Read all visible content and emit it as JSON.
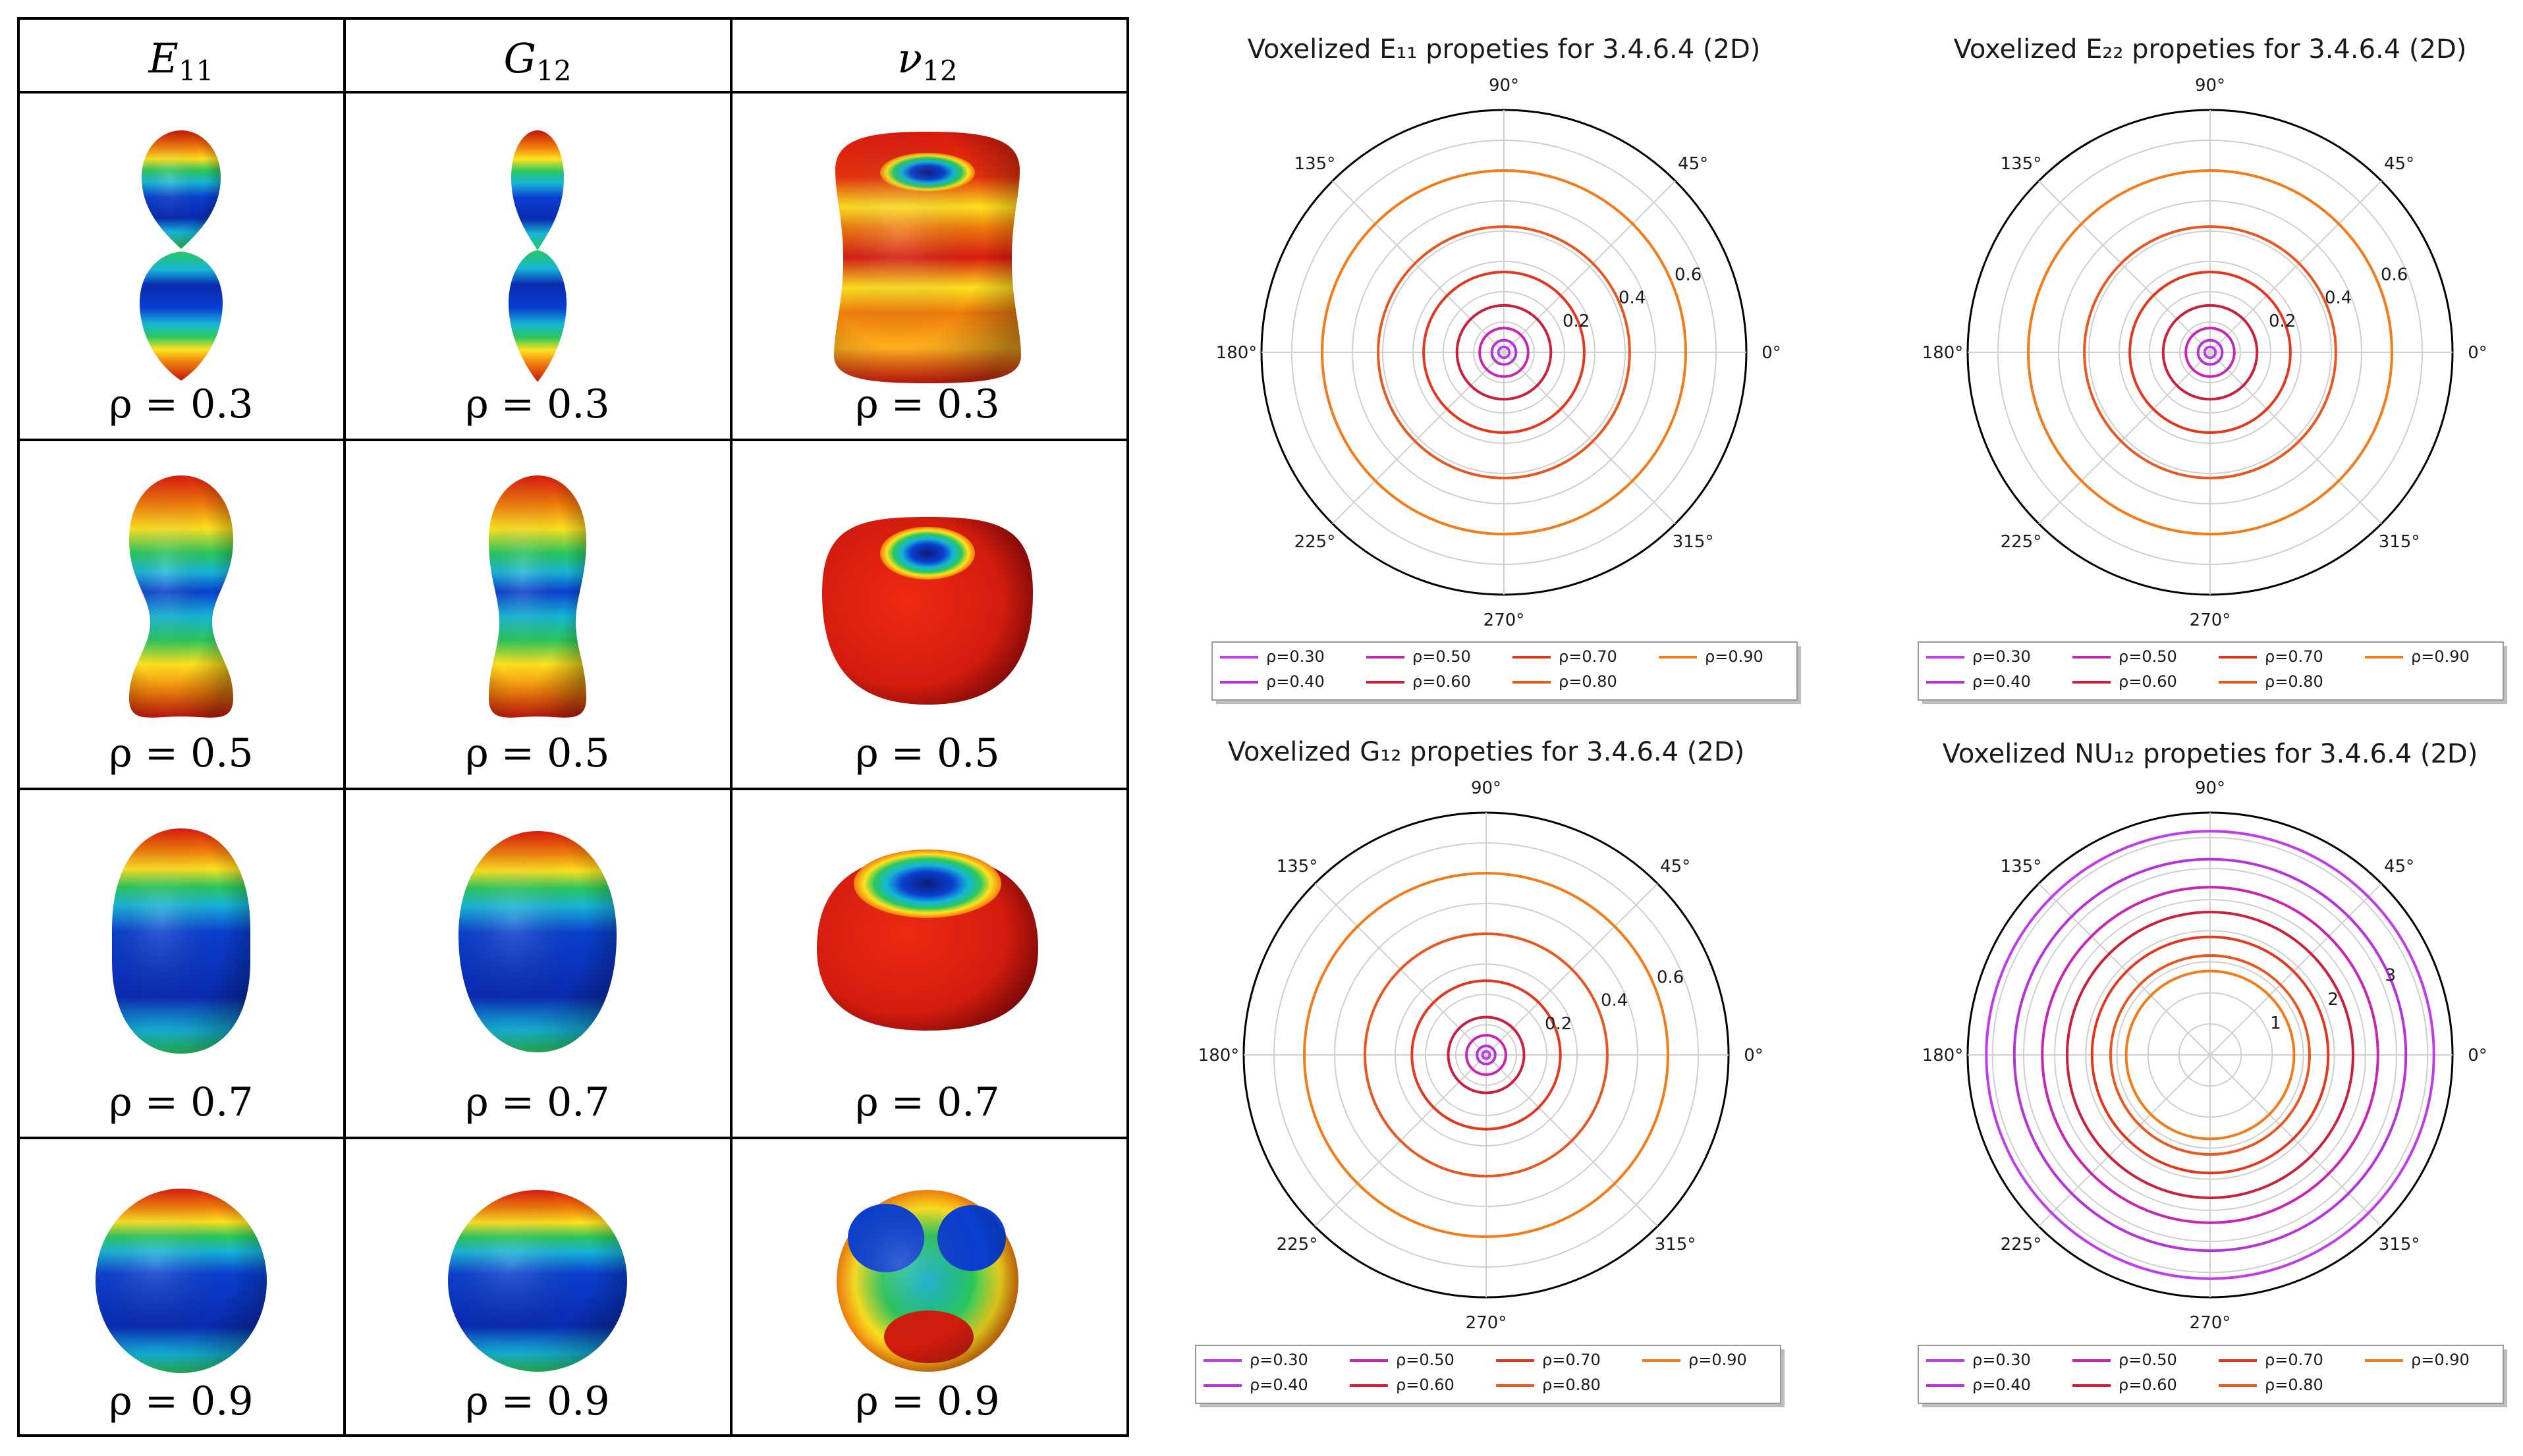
{
  "table": {
    "headers": [
      {
        "main": "E",
        "sub": "11"
      },
      {
        "main": "G",
        "sub": "12"
      },
      {
        "main": "ν",
        "sub": "12"
      }
    ],
    "rows": [
      {
        "label": "ρ = 0.3",
        "rho": 0.3
      },
      {
        "label": "ρ = 0.5",
        "rho": 0.5
      },
      {
        "label": "ρ = 0.7",
        "rho": 0.7
      },
      {
        "label": "ρ = 0.9",
        "rho": 0.9
      }
    ],
    "colors": {
      "red": "#d91a0f",
      "orange": "#f07c0c",
      "yellow": "#ffe21f",
      "green": "#2ac85c",
      "cyan": "#16b5d9",
      "blue": "#0a3fd0",
      "navy": "#0b1a7a"
    }
  },
  "chart_data": [
    {
      "type": "polar",
      "title": "Voxelized E₁₁ propeties for 3.4.6.4 (2D)",
      "theta_labels": [
        "0°",
        "45°",
        "90°",
        "135°",
        "180°",
        "225°",
        "270°",
        "315°"
      ],
      "r_ticks": [
        "0.2",
        "0.4",
        "0.6"
      ],
      "r_tick_values": [
        0.2,
        0.4,
        0.6
      ],
      "rlim": [
        0,
        0.8
      ],
      "grid_values": [
        0.1,
        0.2,
        0.3,
        0.4,
        0.5,
        0.6,
        0.7
      ],
      "series": [
        {
          "name": "ρ=0.30",
          "color": "#c03ce8",
          "radius": 0.018
        },
        {
          "name": "ρ=0.40",
          "color": "#b633d9",
          "radius": 0.04
        },
        {
          "name": "ρ=0.50",
          "color": "#c626b2",
          "radius": 0.08
        },
        {
          "name": "ρ=0.60",
          "color": "#c8213e",
          "radius": 0.155
        },
        {
          "name": "ρ=0.70",
          "color": "#e0391f",
          "radius": 0.265
        },
        {
          "name": "ρ=0.80",
          "color": "#e65822",
          "radius": 0.415
        },
        {
          "name": "ρ=0.90",
          "color": "#f07c1c",
          "radius": 0.6
        }
      ]
    },
    {
      "type": "polar",
      "title": "Voxelized E₂₂ propeties for 3.4.6.4 (2D)",
      "theta_labels": [
        "0°",
        "45°",
        "90°",
        "135°",
        "180°",
        "225°",
        "270°",
        "315°"
      ],
      "r_ticks": [
        "0.2",
        "0.4",
        "0.6"
      ],
      "r_tick_values": [
        0.2,
        0.4,
        0.6
      ],
      "rlim": [
        0,
        0.8
      ],
      "grid_values": [
        0.1,
        0.2,
        0.3,
        0.4,
        0.5,
        0.6,
        0.7
      ],
      "series": [
        {
          "name": "ρ=0.30",
          "color": "#c03ce8",
          "radius": 0.018
        },
        {
          "name": "ρ=0.40",
          "color": "#b633d9",
          "radius": 0.04
        },
        {
          "name": "ρ=0.50",
          "color": "#c626b2",
          "radius": 0.08
        },
        {
          "name": "ρ=0.60",
          "color": "#c8213e",
          "radius": 0.155
        },
        {
          "name": "ρ=0.70",
          "color": "#e0391f",
          "radius": 0.265
        },
        {
          "name": "ρ=0.80",
          "color": "#e65822",
          "radius": 0.415
        },
        {
          "name": "ρ=0.90",
          "color": "#f07c1c",
          "radius": 0.6
        }
      ]
    },
    {
      "type": "polar",
      "title": "Voxelized G₁₂ propeties for 3.4.6.4 (2D)",
      "theta_labels": [
        "0°",
        "45°",
        "90°",
        "135°",
        "180°",
        "225°",
        "270°",
        "315°"
      ],
      "r_ticks": [
        "0.2",
        "0.4",
        "0.6"
      ],
      "r_tick_values": [
        0.2,
        0.4,
        0.6
      ],
      "rlim": [
        0,
        0.8
      ],
      "grid_values": [
        0.1,
        0.2,
        0.3,
        0.4,
        0.5,
        0.6,
        0.7
      ],
      "series": [
        {
          "name": "ρ=0.30",
          "color": "#c03ce8",
          "radius": 0.012
        },
        {
          "name": "ρ=0.40",
          "color": "#b633d9",
          "radius": 0.03
        },
        {
          "name": "ρ=0.50",
          "color": "#c626b2",
          "radius": 0.065
        },
        {
          "name": "ρ=0.60",
          "color": "#c8213e",
          "radius": 0.125
        },
        {
          "name": "ρ=0.70",
          "color": "#e0391f",
          "radius": 0.245
        },
        {
          "name": "ρ=0.80",
          "color": "#e65822",
          "radius": 0.4
        },
        {
          "name": "ρ=0.90",
          "color": "#f07c1c",
          "radius": 0.6
        }
      ]
    },
    {
      "type": "polar",
      "title": "Voxelized NU₁₂ propeties for 3.4.6.4 (2D)",
      "theta_labels": [
        "0°",
        "45°",
        "90°",
        "135°",
        "180°",
        "225°",
        "270°",
        "315°"
      ],
      "r_ticks": [
        "1",
        "2",
        "3"
      ],
      "r_tick_values": [
        1,
        2,
        3
      ],
      "rlim": [
        0,
        3.9
      ],
      "grid_values": [
        0.5,
        1,
        1.5,
        2,
        2.5,
        3,
        3.5
      ],
      "series": [
        {
          "name": "ρ=0.30",
          "color": "#c03ce8",
          "radius": 3.6
        },
        {
          "name": "ρ=0.40",
          "color": "#b633d9",
          "radius": 3.15
        },
        {
          "name": "ρ=0.50",
          "color": "#c626b2",
          "radius": 2.7
        },
        {
          "name": "ρ=0.60",
          "color": "#c8213e",
          "radius": 2.3
        },
        {
          "name": "ρ=0.70",
          "color": "#e0391f",
          "radius": 1.9
        },
        {
          "name": "ρ=0.80",
          "color": "#e65822",
          "radius": 1.6
        },
        {
          "name": "ρ=0.90",
          "color": "#f07c1c",
          "radius": 1.35
        }
      ]
    }
  ]
}
